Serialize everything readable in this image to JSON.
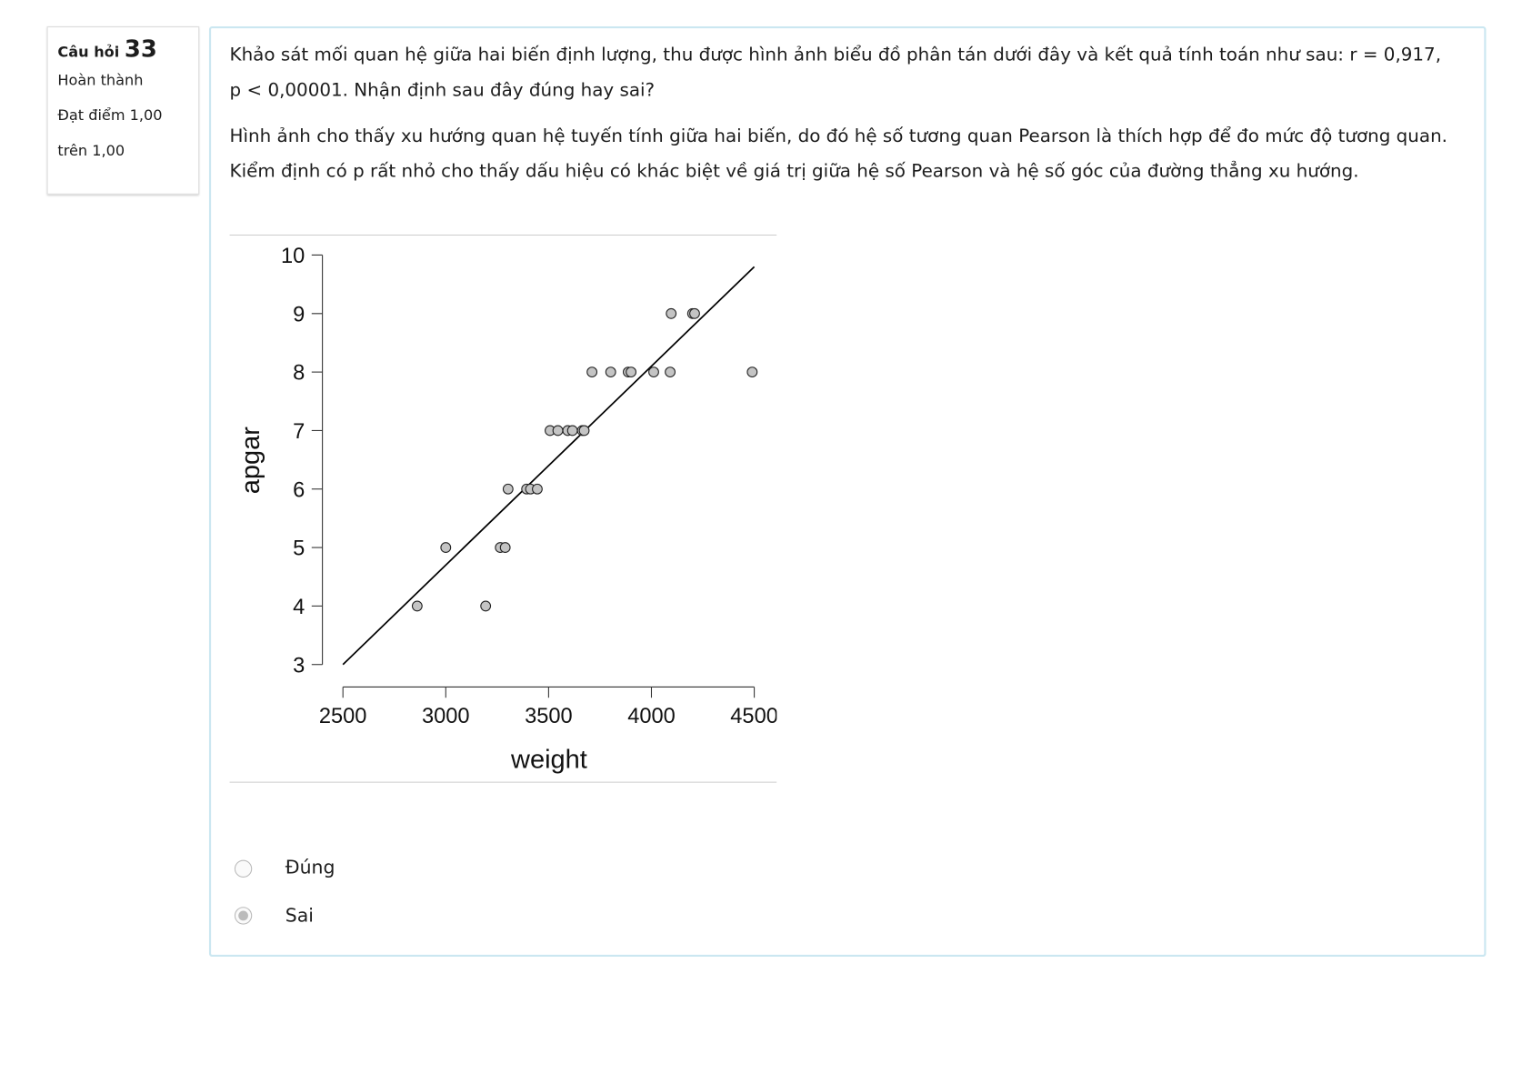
{
  "info": {
    "label": "Câu hỏi",
    "number": "33",
    "status": "Hoàn thành",
    "grade": "Đạt điểm 1,00 trên 1,00"
  },
  "question": {
    "paragraphs": [
      "Khảo sát mối quan hệ giữa hai biến định lượng, thu được hình ảnh biểu đồ phân tán dưới đây và kết quả tính toán như sau: r = 0,917, p < 0,00001. Nhận định sau đây đúng hay sai?",
      "Hình ảnh cho thấy xu hướng quan hệ tuyến tính giữa hai biến, do đó hệ số tương quan Pearson là thích hợp để đo mức độ tương quan. Kiểm định có p rất nhỏ cho thấy dấu hiệu có khác biệt về giá trị giữa hệ số Pearson và hệ số góc của đường thẳng xu hướng."
    ]
  },
  "chart_data": {
    "type": "scatter",
    "x_label": "weight",
    "y_label": "apgar",
    "x": [
      2861,
      3000,
      3194,
      3265,
      3289,
      3303,
      3393,
      3412,
      3445,
      3507,
      3545,
      3593,
      3616,
      3664,
      3673,
      3711,
      3802,
      3887,
      3901,
      4011,
      4091,
      4490,
      4096,
      4200,
      4210
    ],
    "y": [
      4,
      5,
      4,
      5,
      5,
      6,
      6,
      6,
      6,
      7,
      7,
      7,
      7,
      7,
      7,
      8,
      8,
      8,
      8,
      8,
      8,
      8,
      9,
      9,
      9
    ],
    "color": "#c4c4c4",
    "trend_line": {
      "x": [
        2500,
        4500
      ],
      "y": [
        3,
        9.8
      ]
    },
    "xlim": [
      2500,
      4500
    ],
    "ylim": [
      3,
      10
    ],
    "xticks": [
      2500,
      3000,
      3500,
      4000,
      4500
    ],
    "yticks": [
      3,
      4,
      5,
      6,
      7,
      8,
      9,
      10
    ]
  },
  "answers": {
    "options": [
      "Đúng",
      "Sai"
    ],
    "selected": 1
  }
}
